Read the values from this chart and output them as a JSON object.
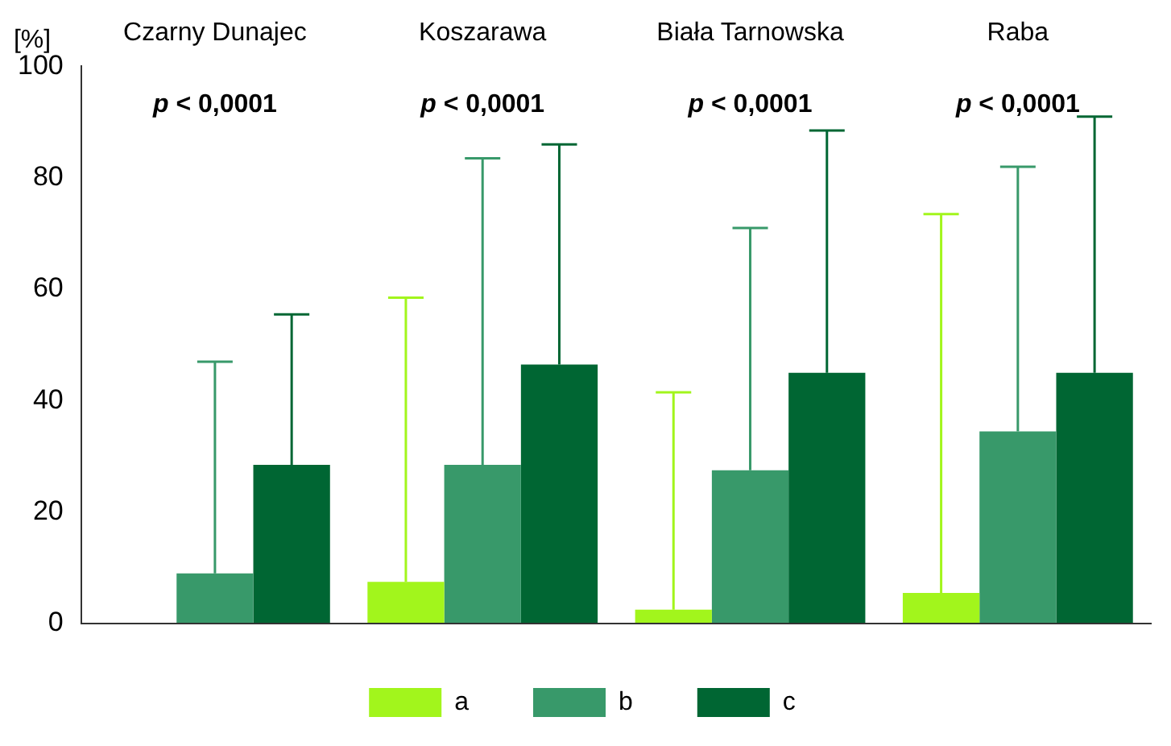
{
  "chart_data": {
    "type": "bar",
    "ylabel": "[%]",
    "categories": [
      "Czarny Dunajec",
      "Koszarawa",
      "Biała Tarnowska",
      "Raba"
    ],
    "series": [
      {
        "name": "a",
        "color": "#a2f51c",
        "values": [
          null,
          7.5,
          2.5,
          5.5
        ],
        "errors": [
          null,
          [
            7.5,
            58.5
          ],
          [
            2.5,
            41.5
          ],
          [
            5.5,
            73.5
          ]
        ]
      },
      {
        "name": "b",
        "color": "#38996a",
        "values": [
          9,
          28.5,
          27.5,
          34.5
        ],
        "errors": [
          [
            9,
            47
          ],
          [
            28.5,
            83.5
          ],
          [
            27.5,
            71
          ],
          [
            34.5,
            82
          ]
        ]
      },
      {
        "name": "c",
        "color": "#006633",
        "values": [
          28.5,
          46.5,
          45,
          45
        ],
        "errors": [
          [
            28.5,
            55.5
          ],
          [
            46.5,
            86
          ],
          [
            45,
            88.5
          ],
          [
            45,
            91
          ]
        ]
      }
    ],
    "ylim": [
      0,
      100
    ],
    "yticks": [
      0,
      20,
      40,
      60,
      80,
      100
    ],
    "grid": false,
    "legend": "bottom",
    "annotations": [
      "p < 0,0001",
      "p < 0,0001",
      "p < 0,0001",
      "p < 0,0001"
    ]
  }
}
